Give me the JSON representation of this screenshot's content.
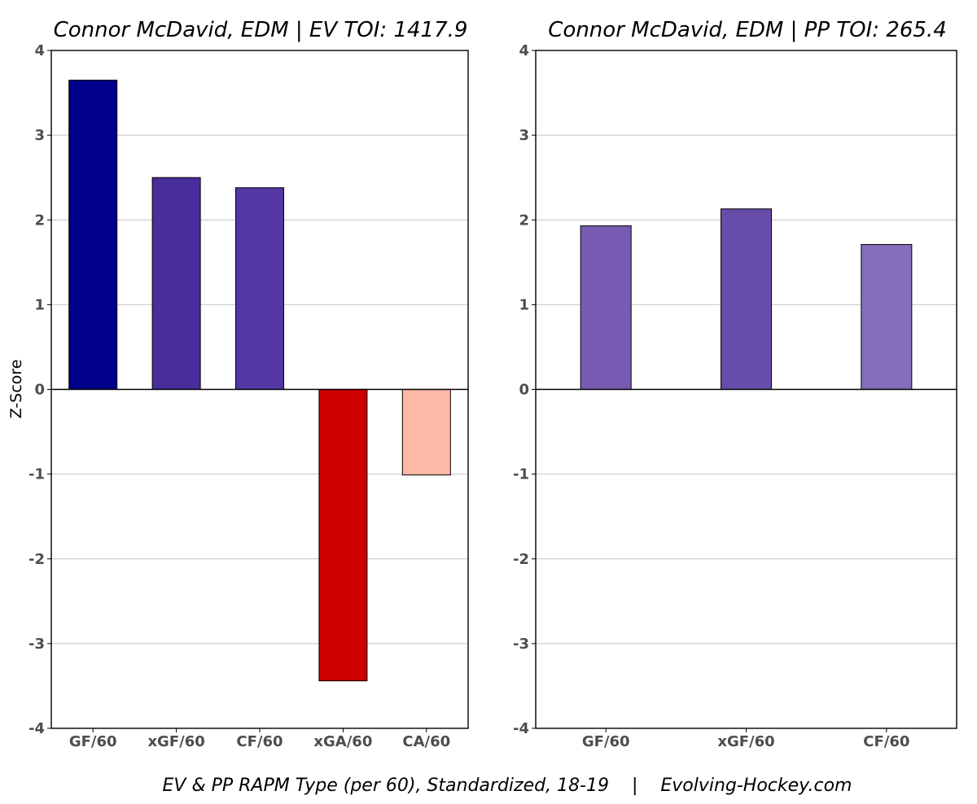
{
  "footer": "EV & PP RAPM Type (per 60), Standardized, 18-19    |    Evolving-Hockey.com",
  "chart_data": [
    {
      "type": "bar",
      "title": "Connor McDavid, EDM  |  EV TOI: 1417.9",
      "ylabel": "Z-Score",
      "xlabel": "",
      "ylim": [
        -4,
        4
      ],
      "yticks": [
        4,
        3,
        2,
        1,
        0,
        -1,
        -2,
        -3,
        -4
      ],
      "grid": true,
      "categories": [
        "GF/60",
        "xGF/60",
        "CF/60",
        "xGA/60",
        "CA/60"
      ],
      "values": [
        3.65,
        2.5,
        2.38,
        -3.44,
        -1.01
      ],
      "colors": [
        "#00008b",
        "#482d9c",
        "#5338a4",
        "#cc0000",
        "#fdb8a6"
      ]
    },
    {
      "type": "bar",
      "title": "Connor McDavid, EDM  |  PP TOI: 265.4",
      "ylabel": "",
      "xlabel": "",
      "ylim": [
        -4,
        4
      ],
      "yticks": [
        4,
        3,
        2,
        1,
        0,
        -1,
        -2,
        -3,
        -4
      ],
      "grid": true,
      "categories": [
        "GF/60",
        "xGF/60",
        "CF/60"
      ],
      "values": [
        1.93,
        2.13,
        1.71
      ],
      "colors": [
        "#785cb3",
        "#684caa",
        "#876ebc"
      ]
    }
  ]
}
